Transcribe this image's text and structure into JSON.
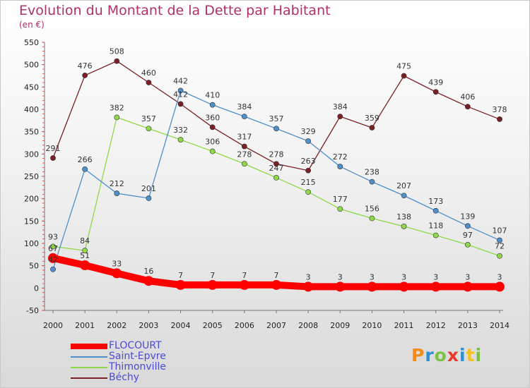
{
  "title": "Evolution du Montant de la Dette par Habitant",
  "unit": "(en €)",
  "logo": "Proxiti",
  "chart_data": {
    "type": "line",
    "x": [
      2000,
      2001,
      2002,
      2003,
      2004,
      2005,
      2006,
      2007,
      2008,
      2009,
      2010,
      2011,
      2012,
      2013,
      2014
    ],
    "ylim": [
      -50,
      550
    ],
    "yticks": [
      -50,
      0,
      50,
      100,
      150,
      200,
      250,
      300,
      350,
      400,
      450,
      500,
      550
    ],
    "grid": "none",
    "legend_position": "bottom-left",
    "series": [
      {
        "name": "FLOCOURT",
        "color": "#ff0000",
        "values": [
          67,
          51,
          33,
          16,
          7,
          7,
          7,
          7,
          3,
          3,
          3,
          3,
          3,
          3,
          3
        ]
      },
      {
        "name": "Saint-Epvre",
        "color": "#4f8fca",
        "values": [
          42,
          266,
          212,
          201,
          442,
          410,
          384,
          357,
          329,
          272,
          238,
          207,
          173,
          139,
          107
        ]
      },
      {
        "name": "Thimonville",
        "color": "#8fd84a",
        "values": [
          93,
          84,
          382,
          357,
          332,
          306,
          278,
          247,
          215,
          177,
          156,
          138,
          118,
          97,
          72
        ]
      },
      {
        "name": "Béchy",
        "color": "#7a1f23",
        "values": [
          291,
          476,
          508,
          460,
          412,
          360,
          317,
          278,
          263,
          384,
          359,
          475,
          439,
          406,
          378
        ]
      }
    ]
  }
}
